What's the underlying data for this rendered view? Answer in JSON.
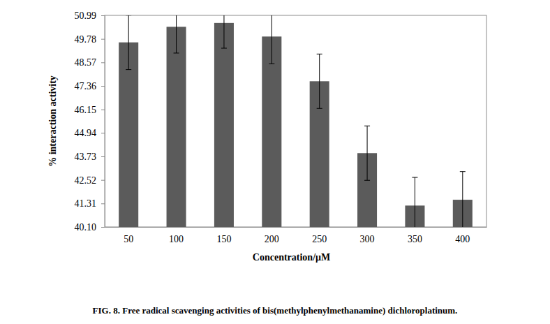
{
  "chart_data": {
    "type": "bar",
    "title": "FIG. 8. Free radical scavenging activities of bis(methylphenylmethanamine) dichloroplatinum.",
    "x_label": "Concentration/μM",
    "y_label": "% interaction activity",
    "categories": [
      "50",
      "100",
      "150",
      "200",
      "250",
      "300",
      "350",
      "400"
    ],
    "values": [
      49.6,
      50.4,
      50.6,
      49.9,
      47.6,
      43.9,
      41.2,
      41.5
    ],
    "errors": [
      1.4,
      1.35,
      1.3,
      1.4,
      1.4,
      1.4,
      1.45,
      1.45
    ],
    "color": "#5b5b5b",
    "ylim": [
      40.1,
      50.99
    ],
    "yticks": [
      {
        "value": 40.1,
        "label": "40.10"
      },
      41.31,
      42.52,
      43.73,
      44.94,
      46.15,
      47.36,
      48.57,
      49.78,
      50.99
    ],
    "grid": false
  }
}
